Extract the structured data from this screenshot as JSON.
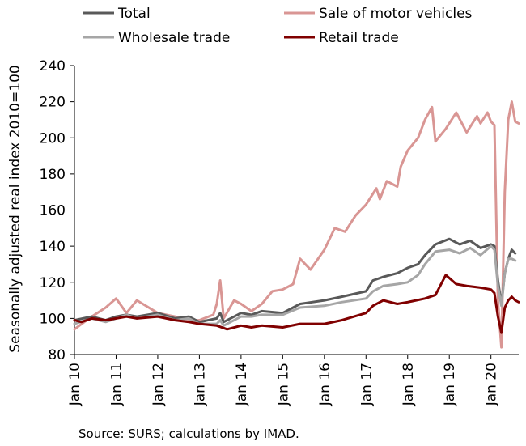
{
  "chart_data": {
    "type": "line",
    "ylabel": "Seasonally adjusted real index 2010=100",
    "ylim": [
      80,
      240
    ],
    "yticks": [
      80,
      100,
      120,
      140,
      160,
      180,
      200,
      220,
      240
    ],
    "x_ticks": [
      {
        "date": "2010-01",
        "label": "Jan 10"
      },
      {
        "date": "2011-01",
        "label": "Jan 11"
      },
      {
        "date": "2012-01",
        "label": "Jan 12"
      },
      {
        "date": "2013-01",
        "label": "Jan 13"
      },
      {
        "date": "2014-01",
        "label": "Jan 14"
      },
      {
        "date": "2015-01",
        "label": "Jan 15"
      },
      {
        "date": "2016-01",
        "label": "Jan 16"
      },
      {
        "date": "2017-01",
        "label": "Jan 17"
      },
      {
        "date": "2018-01",
        "label": "Jan 18"
      },
      {
        "date": "2019-01",
        "label": "Jan 19"
      },
      {
        "date": "2020-01",
        "label": "Jan 20"
      }
    ],
    "x_range": [
      "2010-01",
      "2020-09"
    ],
    "grid": false,
    "legend": "top",
    "series": [
      {
        "name": "Sale of motor vehicles",
        "color": "#d99694",
        "points": [
          [
            "2010-01",
            94
          ],
          [
            "2010-06",
            101
          ],
          [
            "2010-10",
            106
          ],
          [
            "2011-01",
            111
          ],
          [
            "2011-04",
            103
          ],
          [
            "2011-07",
            110
          ],
          [
            "2012-01",
            103
          ],
          [
            "2012-06",
            101
          ],
          [
            "2012-10",
            99
          ],
          [
            "2013-01",
            99
          ],
          [
            "2013-05",
            102
          ],
          [
            "2013-06",
            108
          ],
          [
            "2013-07",
            121
          ],
          [
            "2013-08",
            100
          ],
          [
            "2013-11",
            110
          ],
          [
            "2014-01",
            108
          ],
          [
            "2014-04",
            104
          ],
          [
            "2014-07",
            108
          ],
          [
            "2014-10",
            115
          ],
          [
            "2015-01",
            116
          ],
          [
            "2015-04",
            119
          ],
          [
            "2015-06",
            133
          ],
          [
            "2015-09",
            127
          ],
          [
            "2016-01",
            138
          ],
          [
            "2016-04",
            150
          ],
          [
            "2016-07",
            148
          ],
          [
            "2016-10",
            157
          ],
          [
            "2017-01",
            163
          ],
          [
            "2017-04",
            172
          ],
          [
            "2017-05",
            166
          ],
          [
            "2017-07",
            176
          ],
          [
            "2017-10",
            173
          ],
          [
            "2017-11",
            184
          ],
          [
            "2018-01",
            193
          ],
          [
            "2018-04",
            200
          ],
          [
            "2018-06",
            210
          ],
          [
            "2018-08",
            217
          ],
          [
            "2018-09",
            198
          ],
          [
            "2018-12",
            205
          ],
          [
            "2019-03",
            214
          ],
          [
            "2019-06",
            203
          ],
          [
            "2019-09",
            212
          ],
          [
            "2019-10",
            208
          ],
          [
            "2019-12",
            214
          ],
          [
            "2020-01",
            209
          ],
          [
            "2020-02",
            207
          ],
          [
            "2020-03",
            110
          ],
          [
            "2020-04",
            84
          ],
          [
            "2020-05",
            170
          ],
          [
            "2020-06",
            210
          ],
          [
            "2020-07",
            220
          ],
          [
            "2020-08",
            209
          ],
          [
            "2020-09",
            208
          ]
        ]
      },
      {
        "name": "Total",
        "color": "#595959",
        "points": [
          [
            "2010-01",
            99
          ],
          [
            "2010-06",
            101
          ],
          [
            "2010-10",
            99
          ],
          [
            "2011-01",
            101
          ],
          [
            "2011-04",
            102
          ],
          [
            "2011-07",
            101
          ],
          [
            "2012-01",
            103
          ],
          [
            "2012-06",
            100
          ],
          [
            "2012-10",
            101
          ],
          [
            "2013-01",
            98
          ],
          [
            "2013-06",
            100
          ],
          [
            "2013-07",
            103
          ],
          [
            "2013-08",
            98
          ],
          [
            "2014-01",
            103
          ],
          [
            "2014-04",
            102
          ],
          [
            "2014-07",
            104
          ],
          [
            "2015-01",
            103
          ],
          [
            "2015-06",
            108
          ],
          [
            "2016-01",
            110
          ],
          [
            "2016-06",
            112
          ],
          [
            "2017-01",
            115
          ],
          [
            "2017-03",
            121
          ],
          [
            "2017-06",
            123
          ],
          [
            "2017-10",
            125
          ],
          [
            "2018-01",
            128
          ],
          [
            "2018-04",
            130
          ],
          [
            "2018-06",
            135
          ],
          [
            "2018-09",
            141
          ],
          [
            "2019-01",
            144
          ],
          [
            "2019-04",
            141
          ],
          [
            "2019-07",
            143
          ],
          [
            "2019-10",
            139
          ],
          [
            "2020-01",
            141
          ],
          [
            "2020-02",
            140
          ],
          [
            "2020-03",
            121
          ],
          [
            "2020-04",
            108
          ],
          [
            "2020-05",
            125
          ],
          [
            "2020-06",
            133
          ],
          [
            "2020-07",
            138
          ],
          [
            "2020-08",
            136
          ]
        ]
      },
      {
        "name": "Wholesale trade",
        "color": "#a6a6a6",
        "points": [
          [
            "2010-01",
            97
          ],
          [
            "2010-06",
            100
          ],
          [
            "2010-10",
            98
          ],
          [
            "2011-01",
            100
          ],
          [
            "2011-04",
            102
          ],
          [
            "2011-07",
            100
          ],
          [
            "2012-01",
            102
          ],
          [
            "2012-06",
            99
          ],
          [
            "2012-10",
            100
          ],
          [
            "2013-01",
            97
          ],
          [
            "2013-06",
            97
          ],
          [
            "2013-07",
            99
          ],
          [
            "2013-08",
            96
          ],
          [
            "2014-01",
            101
          ],
          [
            "2014-04",
            101
          ],
          [
            "2014-07",
            102
          ],
          [
            "2015-01",
            102
          ],
          [
            "2015-06",
            106
          ],
          [
            "2016-01",
            107
          ],
          [
            "2016-06",
            109
          ],
          [
            "2017-01",
            111
          ],
          [
            "2017-03",
            115
          ],
          [
            "2017-06",
            118
          ],
          [
            "2017-10",
            119
          ],
          [
            "2018-01",
            120
          ],
          [
            "2018-04",
            124
          ],
          [
            "2018-06",
            130
          ],
          [
            "2018-09",
            137
          ],
          [
            "2019-01",
            138
          ],
          [
            "2019-04",
            136
          ],
          [
            "2019-07",
            139
          ],
          [
            "2019-10",
            135
          ],
          [
            "2020-01",
            140
          ],
          [
            "2020-02",
            138
          ],
          [
            "2020-03",
            118
          ],
          [
            "2020-04",
            107
          ],
          [
            "2020-05",
            125
          ],
          [
            "2020-06",
            133
          ],
          [
            "2020-07",
            133
          ],
          [
            "2020-08",
            132
          ]
        ]
      },
      {
        "name": "Retail trade",
        "color": "#800000",
        "points": [
          [
            "2010-01",
            99
          ],
          [
            "2010-03",
            98
          ],
          [
            "2010-06",
            100
          ],
          [
            "2010-10",
            99
          ],
          [
            "2011-01",
            100
          ],
          [
            "2011-04",
            101
          ],
          [
            "2011-07",
            100
          ],
          [
            "2012-01",
            101
          ],
          [
            "2012-06",
            99
          ],
          [
            "2012-10",
            98
          ],
          [
            "2013-01",
            97
          ],
          [
            "2013-06",
            96
          ],
          [
            "2013-09",
            94
          ],
          [
            "2014-01",
            96
          ],
          [
            "2014-04",
            95
          ],
          [
            "2014-07",
            96
          ],
          [
            "2015-01",
            95
          ],
          [
            "2015-06",
            97
          ],
          [
            "2016-01",
            97
          ],
          [
            "2016-06",
            99
          ],
          [
            "2017-01",
            103
          ],
          [
            "2017-03",
            107
          ],
          [
            "2017-06",
            110
          ],
          [
            "2017-10",
            108
          ],
          [
            "2018-01",
            109
          ],
          [
            "2018-06",
            111
          ],
          [
            "2018-09",
            113
          ],
          [
            "2018-12",
            124
          ],
          [
            "2019-03",
            119
          ],
          [
            "2019-06",
            118
          ],
          [
            "2019-10",
            117
          ],
          [
            "2020-01",
            116
          ],
          [
            "2020-02",
            114
          ],
          [
            "2020-03",
            101
          ],
          [
            "2020-04",
            92
          ],
          [
            "2020-05",
            106
          ],
          [
            "2020-06",
            110
          ],
          [
            "2020-07",
            112
          ],
          [
            "2020-08",
            110
          ],
          [
            "2020-09",
            109
          ]
        ]
      }
    ],
    "legend_order": [
      "Total",
      "Sale of motor vehicles",
      "Wholesale trade",
      "Retail trade"
    ]
  },
  "source": "Source: SURS; calculations by IMAD."
}
